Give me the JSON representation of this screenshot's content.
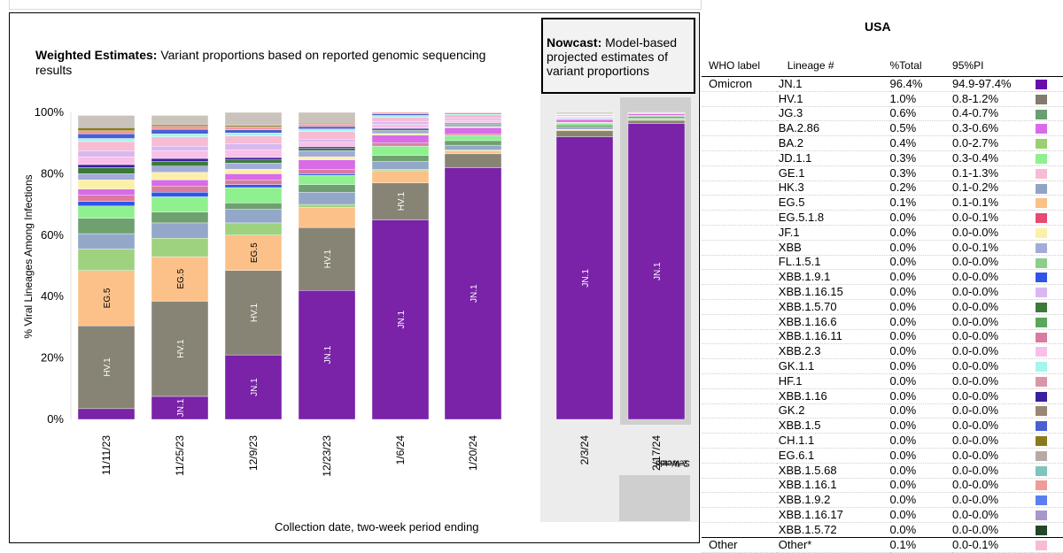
{
  "chart_title_bold": "Weighted Estimates:",
  "chart_title_rest": "Variant proportions based on reported genomic sequencing results",
  "nowcast_bold": "Nowcast:",
  "nowcast_rest": "Model-based projected estimates of variant proportions",
  "selected_label_line1": "Selected",
  "selected_label_line2": "2-Week",
  "table": {
    "title": "USA",
    "headers": [
      "WHO label",
      "Lineage #",
      "%Total",
      "95%PI"
    ],
    "rows": [
      {
        "who": "Omicron",
        "lineage": "JN.1",
        "pct": "96.4%",
        "pi": "94.9-97.4%",
        "color": "#6a0dad"
      },
      {
        "who": "",
        "lineage": "HV.1",
        "pct": "1.0%",
        "pi": "0.8-1.2%",
        "color": "#827c6e"
      },
      {
        "who": "",
        "lineage": "JG.3",
        "pct": "0.6%",
        "pi": "0.4-0.7%",
        "color": "#6b9e73"
      },
      {
        "who": "",
        "lineage": "BA.2.86",
        "pct": "0.5%",
        "pi": "0.3-0.6%",
        "color": "#d86be8"
      },
      {
        "who": "",
        "lineage": "BA.2",
        "pct": "0.4%",
        "pi": "0.0-2.7%",
        "color": "#9bcf70"
      },
      {
        "who": "",
        "lineage": "JD.1.1",
        "pct": "0.3%",
        "pi": "0.3-0.4%",
        "color": "#8ff08f"
      },
      {
        "who": "",
        "lineage": "GE.1",
        "pct": "0.3%",
        "pi": "0.1-1.3%",
        "color": "#f7bcd3"
      },
      {
        "who": "",
        "lineage": "HK.3",
        "pct": "0.2%",
        "pi": "0.1-0.2%",
        "color": "#90a4c4"
      },
      {
        "who": "",
        "lineage": "EG.5",
        "pct": "0.1%",
        "pi": "0.1-0.1%",
        "color": "#fbc086"
      },
      {
        "who": "",
        "lineage": "EG.5.1.8",
        "pct": "0.0%",
        "pi": "0.0-0.1%",
        "color": "#e64b72"
      },
      {
        "who": "",
        "lineage": "JF.1",
        "pct": "0.0%",
        "pi": "0.0-0.0%",
        "color": "#fbf0a8"
      },
      {
        "who": "",
        "lineage": "XBB",
        "pct": "0.0%",
        "pi": "0.0-0.1%",
        "color": "#a3acd8"
      },
      {
        "who": "",
        "lineage": "FL.1.5.1",
        "pct": "0.0%",
        "pi": "0.0-0.0%",
        "color": "#8dce8c"
      },
      {
        "who": "",
        "lineage": "XBB.1.9.1",
        "pct": "0.0%",
        "pi": "0.0-0.0%",
        "color": "#2f55e8"
      },
      {
        "who": "",
        "lineage": "XBB.1.16.15",
        "pct": "0.0%",
        "pi": "0.0-0.0%",
        "color": "#d9b8f0"
      },
      {
        "who": "",
        "lineage": "XBB.1.5.70",
        "pct": "0.0%",
        "pi": "0.0-0.0%",
        "color": "#3b7a3b"
      },
      {
        "who": "",
        "lineage": "XBB.1.16.6",
        "pct": "0.0%",
        "pi": "0.0-0.0%",
        "color": "#5aa65a"
      },
      {
        "who": "",
        "lineage": "XBB.1.16.11",
        "pct": "0.0%",
        "pi": "0.0-0.0%",
        "color": "#d97aa0"
      },
      {
        "who": "",
        "lineage": "XBB.2.3",
        "pct": "0.0%",
        "pi": "0.0-0.0%",
        "color": "#f8c0e8"
      },
      {
        "who": "",
        "lineage": "GK.1.1",
        "pct": "0.0%",
        "pi": "0.0-0.0%",
        "color": "#a4f5ec"
      },
      {
        "who": "",
        "lineage": "HF.1",
        "pct": "0.0%",
        "pi": "0.0-0.0%",
        "color": "#d897a8"
      },
      {
        "who": "",
        "lineage": "XBB.1.16",
        "pct": "0.0%",
        "pi": "0.0-0.0%",
        "color": "#3b1f9e"
      },
      {
        "who": "",
        "lineage": "GK.2",
        "pct": "0.0%",
        "pi": "0.0-0.0%",
        "color": "#9a8576"
      },
      {
        "who": "",
        "lineage": "XBB.1.5",
        "pct": "0.0%",
        "pi": "0.0-0.0%",
        "color": "#4a5fd0"
      },
      {
        "who": "",
        "lineage": "CH.1.1",
        "pct": "0.0%",
        "pi": "0.0-0.0%",
        "color": "#8a7a1e"
      },
      {
        "who": "",
        "lineage": "EG.6.1",
        "pct": "0.0%",
        "pi": "0.0-0.0%",
        "color": "#b7aaa4"
      },
      {
        "who": "",
        "lineage": "XBB.1.5.68",
        "pct": "0.0%",
        "pi": "0.0-0.0%",
        "color": "#7fc4bd"
      },
      {
        "who": "",
        "lineage": "XBB.1.16.1",
        "pct": "0.0%",
        "pi": "0.0-0.0%",
        "color": "#f09a9a"
      },
      {
        "who": "",
        "lineage": "XBB.1.9.2",
        "pct": "0.0%",
        "pi": "0.0-0.0%",
        "color": "#5d7ef0"
      },
      {
        "who": "",
        "lineage": "XBB.1.16.17",
        "pct": "0.0%",
        "pi": "0.0-0.0%",
        "color": "#a498c8"
      },
      {
        "who": "",
        "lineage": "XBB.1.5.72",
        "pct": "0.0%",
        "pi": "0.0-0.0%",
        "color": "#23472a"
      },
      {
        "who": "Other",
        "lineage": "Other*",
        "pct": "0.1%",
        "pi": "0.0-0.1%",
        "color": "#f7bcd3"
      }
    ]
  },
  "chart_data": {
    "type": "bar",
    "stacked": true,
    "title": "Weighted Estimates: Variant proportions based on reported genomic sequencing results",
    "ylabel": "% Viral Lineages Among Infections",
    "xlabel": "Collection date, two-week period ending",
    "ylim": [
      0,
      100
    ],
    "yticks": [
      "0%",
      "20%",
      "40%",
      "60%",
      "80%",
      "100%"
    ],
    "categories": [
      "11/11/23",
      "11/25/23",
      "12/9/23",
      "12/23/23",
      "1/6/24",
      "1/20/24",
      "2/3/24",
      "2/17/24"
    ],
    "nowcast_categories": [
      "2/3/24",
      "2/17/24"
    ],
    "series": [
      {
        "name": "JN.1",
        "color": "#7a22a8",
        "values": [
          3.5,
          7.5,
          21,
          42,
          65,
          82,
          92,
          96.4
        ]
      },
      {
        "name": "HV.1",
        "color": "#878476",
        "values": [
          27,
          31,
          27.5,
          20.5,
          12,
          4.5,
          2,
          1.0
        ]
      },
      {
        "name": "EG.5",
        "color": "#fbc189",
        "values": [
          18,
          14.5,
          11.5,
          6.5,
          4,
          1,
          0.3,
          0.1
        ]
      },
      {
        "name": "BA.2",
        "color": "#9fd27f",
        "values": [
          7,
          6,
          4,
          1,
          0.5,
          0.3,
          0.2,
          0.4
        ]
      },
      {
        "name": "HK.3",
        "color": "#93a8c8",
        "values": [
          5,
          5,
          4.5,
          4,
          2.5,
          1.5,
          0.7,
          0.2
        ]
      },
      {
        "name": "JG.3",
        "color": "#6fa070",
        "values": [
          5,
          3.5,
          2,
          2.5,
          2,
          1.5,
          0.7,
          0.6
        ]
      },
      {
        "name": "JD.1.1",
        "color": "#8ff08f",
        "values": [
          4,
          5,
          5,
          3,
          3,
          1.5,
          0.6,
          0.3
        ]
      },
      {
        "name": "XBB.1.9.1",
        "color": "#2f55e8",
        "values": [
          1.5,
          1.5,
          1,
          0.5,
          0.3,
          0.2,
          0.1,
          0
        ]
      },
      {
        "name": "XBB.1.16.11",
        "color": "#d97aa0",
        "values": [
          2,
          2,
          1.5,
          1.5,
          0.8,
          0.5,
          0.2,
          0
        ]
      },
      {
        "name": "BA.2.86",
        "color": "#d86be8",
        "values": [
          2,
          2,
          2,
          3,
          2.5,
          2,
          0.8,
          0.5
        ]
      },
      {
        "name": "JF.1",
        "color": "#fbf0a8",
        "values": [
          3,
          2.5,
          1.5,
          1,
          0.5,
          0.3,
          0.2,
          0
        ]
      },
      {
        "name": "XBB",
        "color": "#a3acd8",
        "values": [
          2,
          2,
          2,
          2,
          1,
          0.8,
          0.3,
          0
        ]
      },
      {
        "name": "XBB.1.5.70",
        "color": "#3b7a3b",
        "values": [
          2,
          1.5,
          1,
          0.8,
          0.5,
          0.3,
          0.1,
          0
        ]
      },
      {
        "name": "XBB.1.16",
        "color": "#3b1f9e",
        "values": [
          1,
          1,
          0.8,
          0.5,
          0.3,
          0.2,
          0.1,
          0
        ]
      },
      {
        "name": "XBB.2.3",
        "color": "#f8c0e8",
        "values": [
          2.5,
          2.5,
          2.5,
          1.5,
          1.2,
          0.8,
          0.3,
          0
        ]
      },
      {
        "name": "XBB.1.16.15",
        "color": "#d9b8f0",
        "values": [
          2,
          1.5,
          2,
          1,
          0.8,
          0.6,
          0.2,
          0
        ]
      },
      {
        "name": "GE.1",
        "color": "#f7bcd3",
        "values": [
          3,
          3,
          2.5,
          2.5,
          1.6,
          1.2,
          0.4,
          0.3
        ]
      },
      {
        "name": "GK.1.1",
        "color": "#a4f5ec",
        "values": [
          1,
          1,
          1,
          0.8,
          0.5,
          0.3,
          0.1,
          0
        ]
      },
      {
        "name": "XBB.1.5",
        "color": "#4a5fd0",
        "values": [
          1.5,
          1.5,
          1,
          0.8,
          0.5,
          0.3,
          0.1,
          0
        ]
      },
      {
        "name": "XBB.1.16.1",
        "color": "#f09a9a",
        "values": [
          1,
          1,
          1,
          0.8,
          0.5,
          0.3,
          0.1,
          0
        ]
      },
      {
        "name": "CH.1.1",
        "color": "#8a7a1e",
        "values": [
          1,
          0.5,
          0.5,
          0.3,
          0.2,
          0.1,
          0,
          0
        ]
      },
      {
        "name": "Other*",
        "color": "#c9c3bb",
        "values": [
          4,
          3,
          4.2,
          3.5,
          1.3,
          0.9,
          0.6,
          0.2
        ]
      }
    ],
    "bar_labels": [
      {
        "category": "11/11/23",
        "series": "HV.1",
        "text": "HV.1"
      },
      {
        "category": "11/11/23",
        "series": "EG.5",
        "text": "EG.5"
      },
      {
        "category": "11/25/23",
        "series": "JN.1",
        "text": "JN.1"
      },
      {
        "category": "11/25/23",
        "series": "HV.1",
        "text": "HV.1"
      },
      {
        "category": "11/25/23",
        "series": "EG.5",
        "text": "EG.5"
      },
      {
        "category": "12/9/23",
        "series": "JN.1",
        "text": "JN.1"
      },
      {
        "category": "12/9/23",
        "series": "HV.1",
        "text": "HV.1"
      },
      {
        "category": "12/9/23",
        "series": "EG.5",
        "text": "EG.5"
      },
      {
        "category": "12/23/23",
        "series": "JN.1",
        "text": "JN.1"
      },
      {
        "category": "12/23/23",
        "series": "HV.1",
        "text": "HV.1"
      },
      {
        "category": "1/6/24",
        "series": "JN.1",
        "text": "JN.1"
      },
      {
        "category": "1/6/24",
        "series": "HV.1",
        "text": "HV.1"
      },
      {
        "category": "1/20/24",
        "series": "JN.1",
        "text": "JN.1"
      },
      {
        "category": "2/3/24",
        "series": "JN.1",
        "text": "JN.1"
      },
      {
        "category": "2/17/24",
        "series": "JN.1",
        "text": "JN.1"
      }
    ]
  }
}
